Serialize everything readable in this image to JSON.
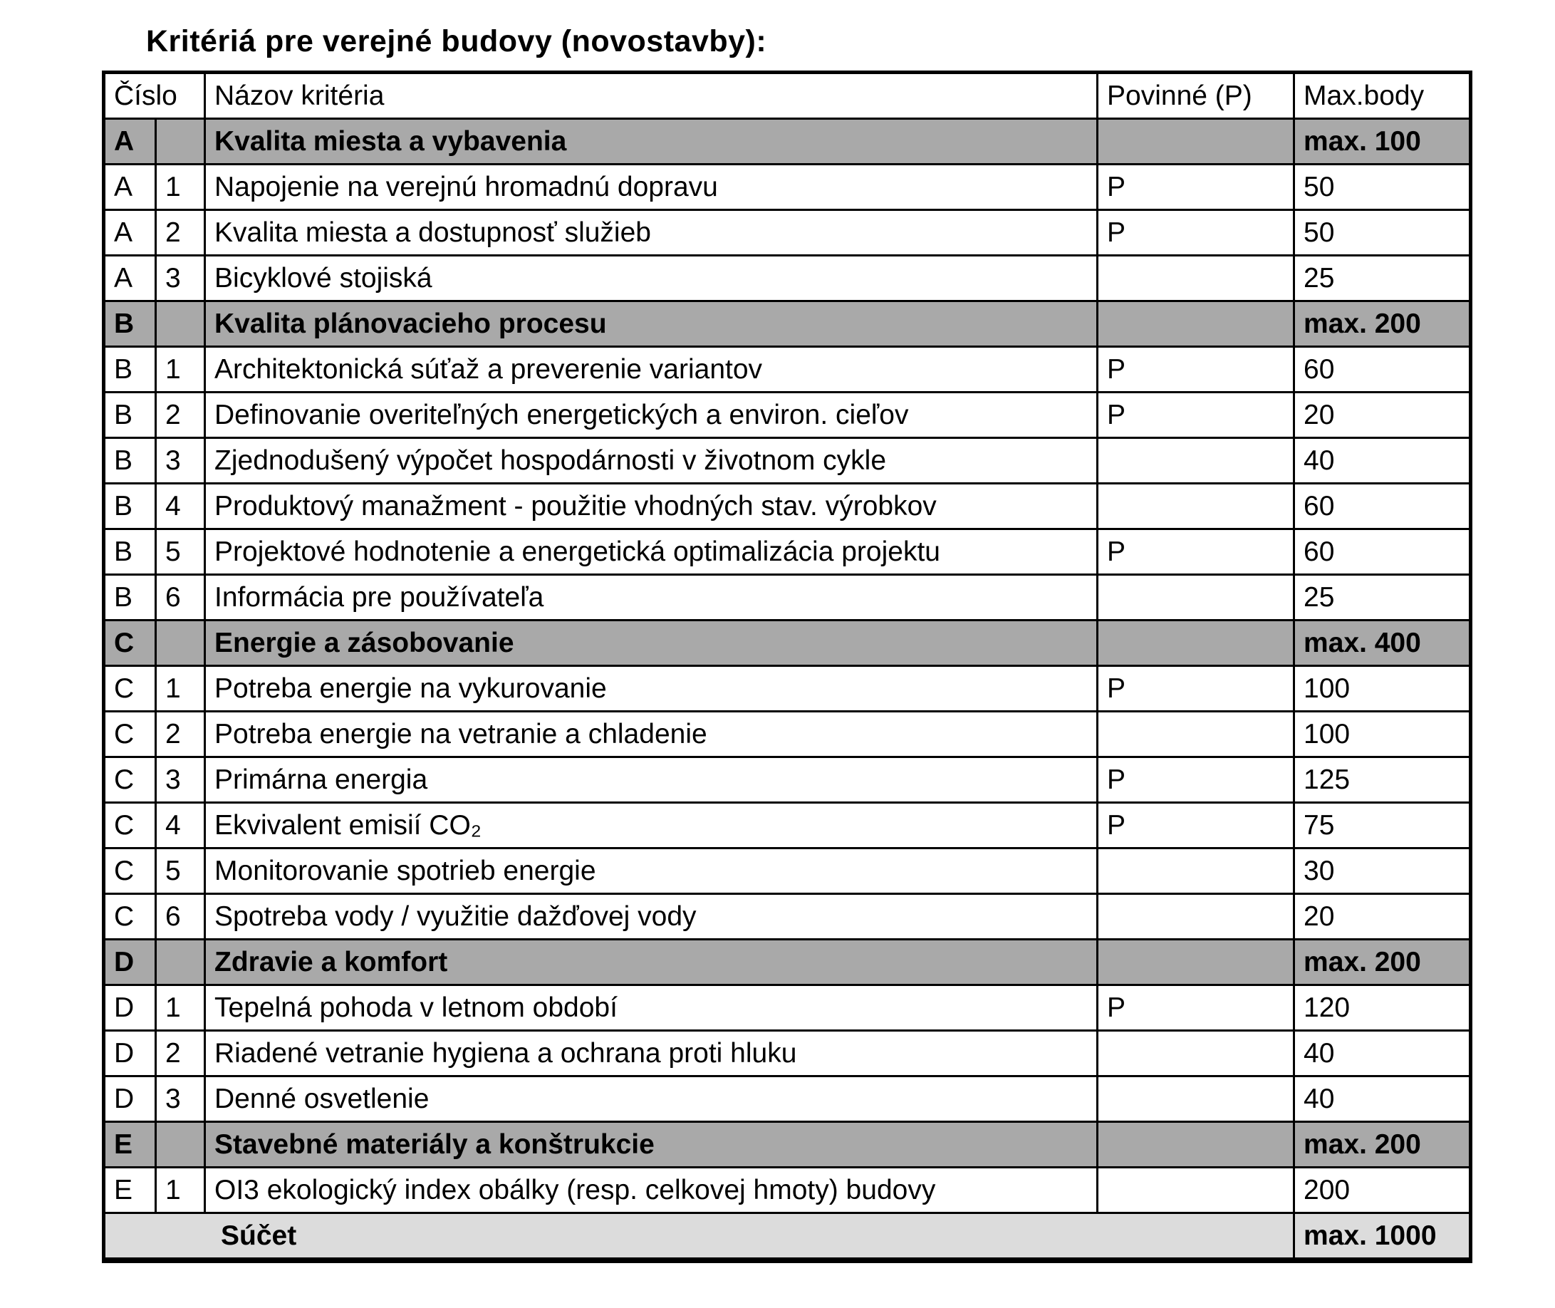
{
  "page_title": "Kritériá pre verejné budovy (novostavby):",
  "colors": {
    "header_bg": "#e2e2e2",
    "section_bg": "#a9a9a9",
    "footer_bg": "#dcdcdc",
    "row_bg": "#ffffff",
    "border": "#000000"
  },
  "table": {
    "headers": {
      "cislo": "Číslo",
      "nazov": "Názov kritéria",
      "povinne": "Povinné (P)",
      "max_body": "Max.body"
    },
    "rows": [
      {
        "type": "section",
        "letter": "A",
        "num": "",
        "name": "Kvalita miesta a vybavenia",
        "povinne": "",
        "max": "max. 100"
      },
      {
        "type": "item",
        "letter": "A",
        "num": "1",
        "name": "Napojenie na verejnú hromadnú dopravu",
        "povinne": "P",
        "max": "50"
      },
      {
        "type": "item",
        "letter": "A",
        "num": "2",
        "name": "Kvalita miesta a dostupnosť služieb",
        "povinne": "P",
        "max": "50"
      },
      {
        "type": "item",
        "letter": "A",
        "num": "3",
        "name": "Bicyklové stojiská",
        "povinne": "",
        "max": "25"
      },
      {
        "type": "section",
        "letter": "B",
        "num": "",
        "name": "Kvalita plánovacieho procesu",
        "povinne": "",
        "max": "max. 200"
      },
      {
        "type": "item",
        "letter": "B",
        "num": "1",
        "name": "Architektonická súťaž a preverenie variantov",
        "povinne": "P",
        "max": "60"
      },
      {
        "type": "item",
        "letter": "B",
        "num": "2",
        "name": "Definovanie overiteľných energetických a environ. cieľov",
        "povinne": "P",
        "max": "20"
      },
      {
        "type": "item",
        "letter": "B",
        "num": "3",
        "name": "Zjednodušený výpočet hospodárnosti v životnom cykle",
        "povinne": "",
        "max": "40"
      },
      {
        "type": "item",
        "letter": "B",
        "num": "4",
        "name": "Produktový manažment - použitie vhodných stav. výrobkov",
        "povinne": "",
        "max": "60"
      },
      {
        "type": "item",
        "letter": "B",
        "num": "5",
        "name": "Projektové hodnotenie a energetická optimalizácia projektu",
        "povinne": "P",
        "max": "60"
      },
      {
        "type": "item",
        "letter": "B",
        "num": "6",
        "name": "Informácia pre používateľa",
        "povinne": "",
        "max": "25"
      },
      {
        "type": "section",
        "letter": "C",
        "num": "",
        "name": "Energie a zásobovanie",
        "povinne": "",
        "max": "max. 400"
      },
      {
        "type": "item",
        "letter": "C",
        "num": "1",
        "name": "Potreba energie na vykurovanie",
        "povinne": "P",
        "max": "100"
      },
      {
        "type": "item",
        "letter": "C",
        "num": "2",
        "name": "Potreba energie na vetranie a chladenie",
        "povinne": "",
        "max": "100"
      },
      {
        "type": "item",
        "letter": "C",
        "num": "3",
        "name": "Primárna energia",
        "povinne": "P",
        "max": "125"
      },
      {
        "type": "item",
        "letter": "C",
        "num": "4",
        "name": "Ekvivalent emisií CO₂",
        "povinne": "P",
        "max": "75"
      },
      {
        "type": "item",
        "letter": "C",
        "num": "5",
        "name": "Monitorovanie spotrieb energie",
        "povinne": "",
        "max": "30"
      },
      {
        "type": "item",
        "letter": "C",
        "num": "6",
        "name": "Spotreba vody / využitie dažďovej vody",
        "povinne": "",
        "max": "20"
      },
      {
        "type": "section",
        "letter": "D",
        "num": "",
        "name": "Zdravie a komfort",
        "povinne": "",
        "max": "max. 200"
      },
      {
        "type": "item",
        "letter": "D",
        "num": "1",
        "name": "Tepelná pohoda v letnom období",
        "povinne": "P",
        "max": "120"
      },
      {
        "type": "item",
        "letter": "D",
        "num": "2",
        "name": "Riadené vetranie hygiena a ochrana proti hluku",
        "povinne": "",
        "max": "40"
      },
      {
        "type": "item",
        "letter": "D",
        "num": "3",
        "name": "Denné osvetlenie",
        "povinne": "",
        "max": "40"
      },
      {
        "type": "section",
        "letter": "E",
        "num": "",
        "name": "Stavebné materiály a konštrukcie",
        "povinne": "",
        "max": "max. 200"
      },
      {
        "type": "item",
        "letter": "E",
        "num": "1",
        "name": "OI3 ekologický index obálky (resp. celkovej hmoty) budovy",
        "povinne": "",
        "max": "200"
      },
      {
        "type": "footer",
        "name": "Súčet",
        "max": "max. 1000"
      }
    ]
  }
}
